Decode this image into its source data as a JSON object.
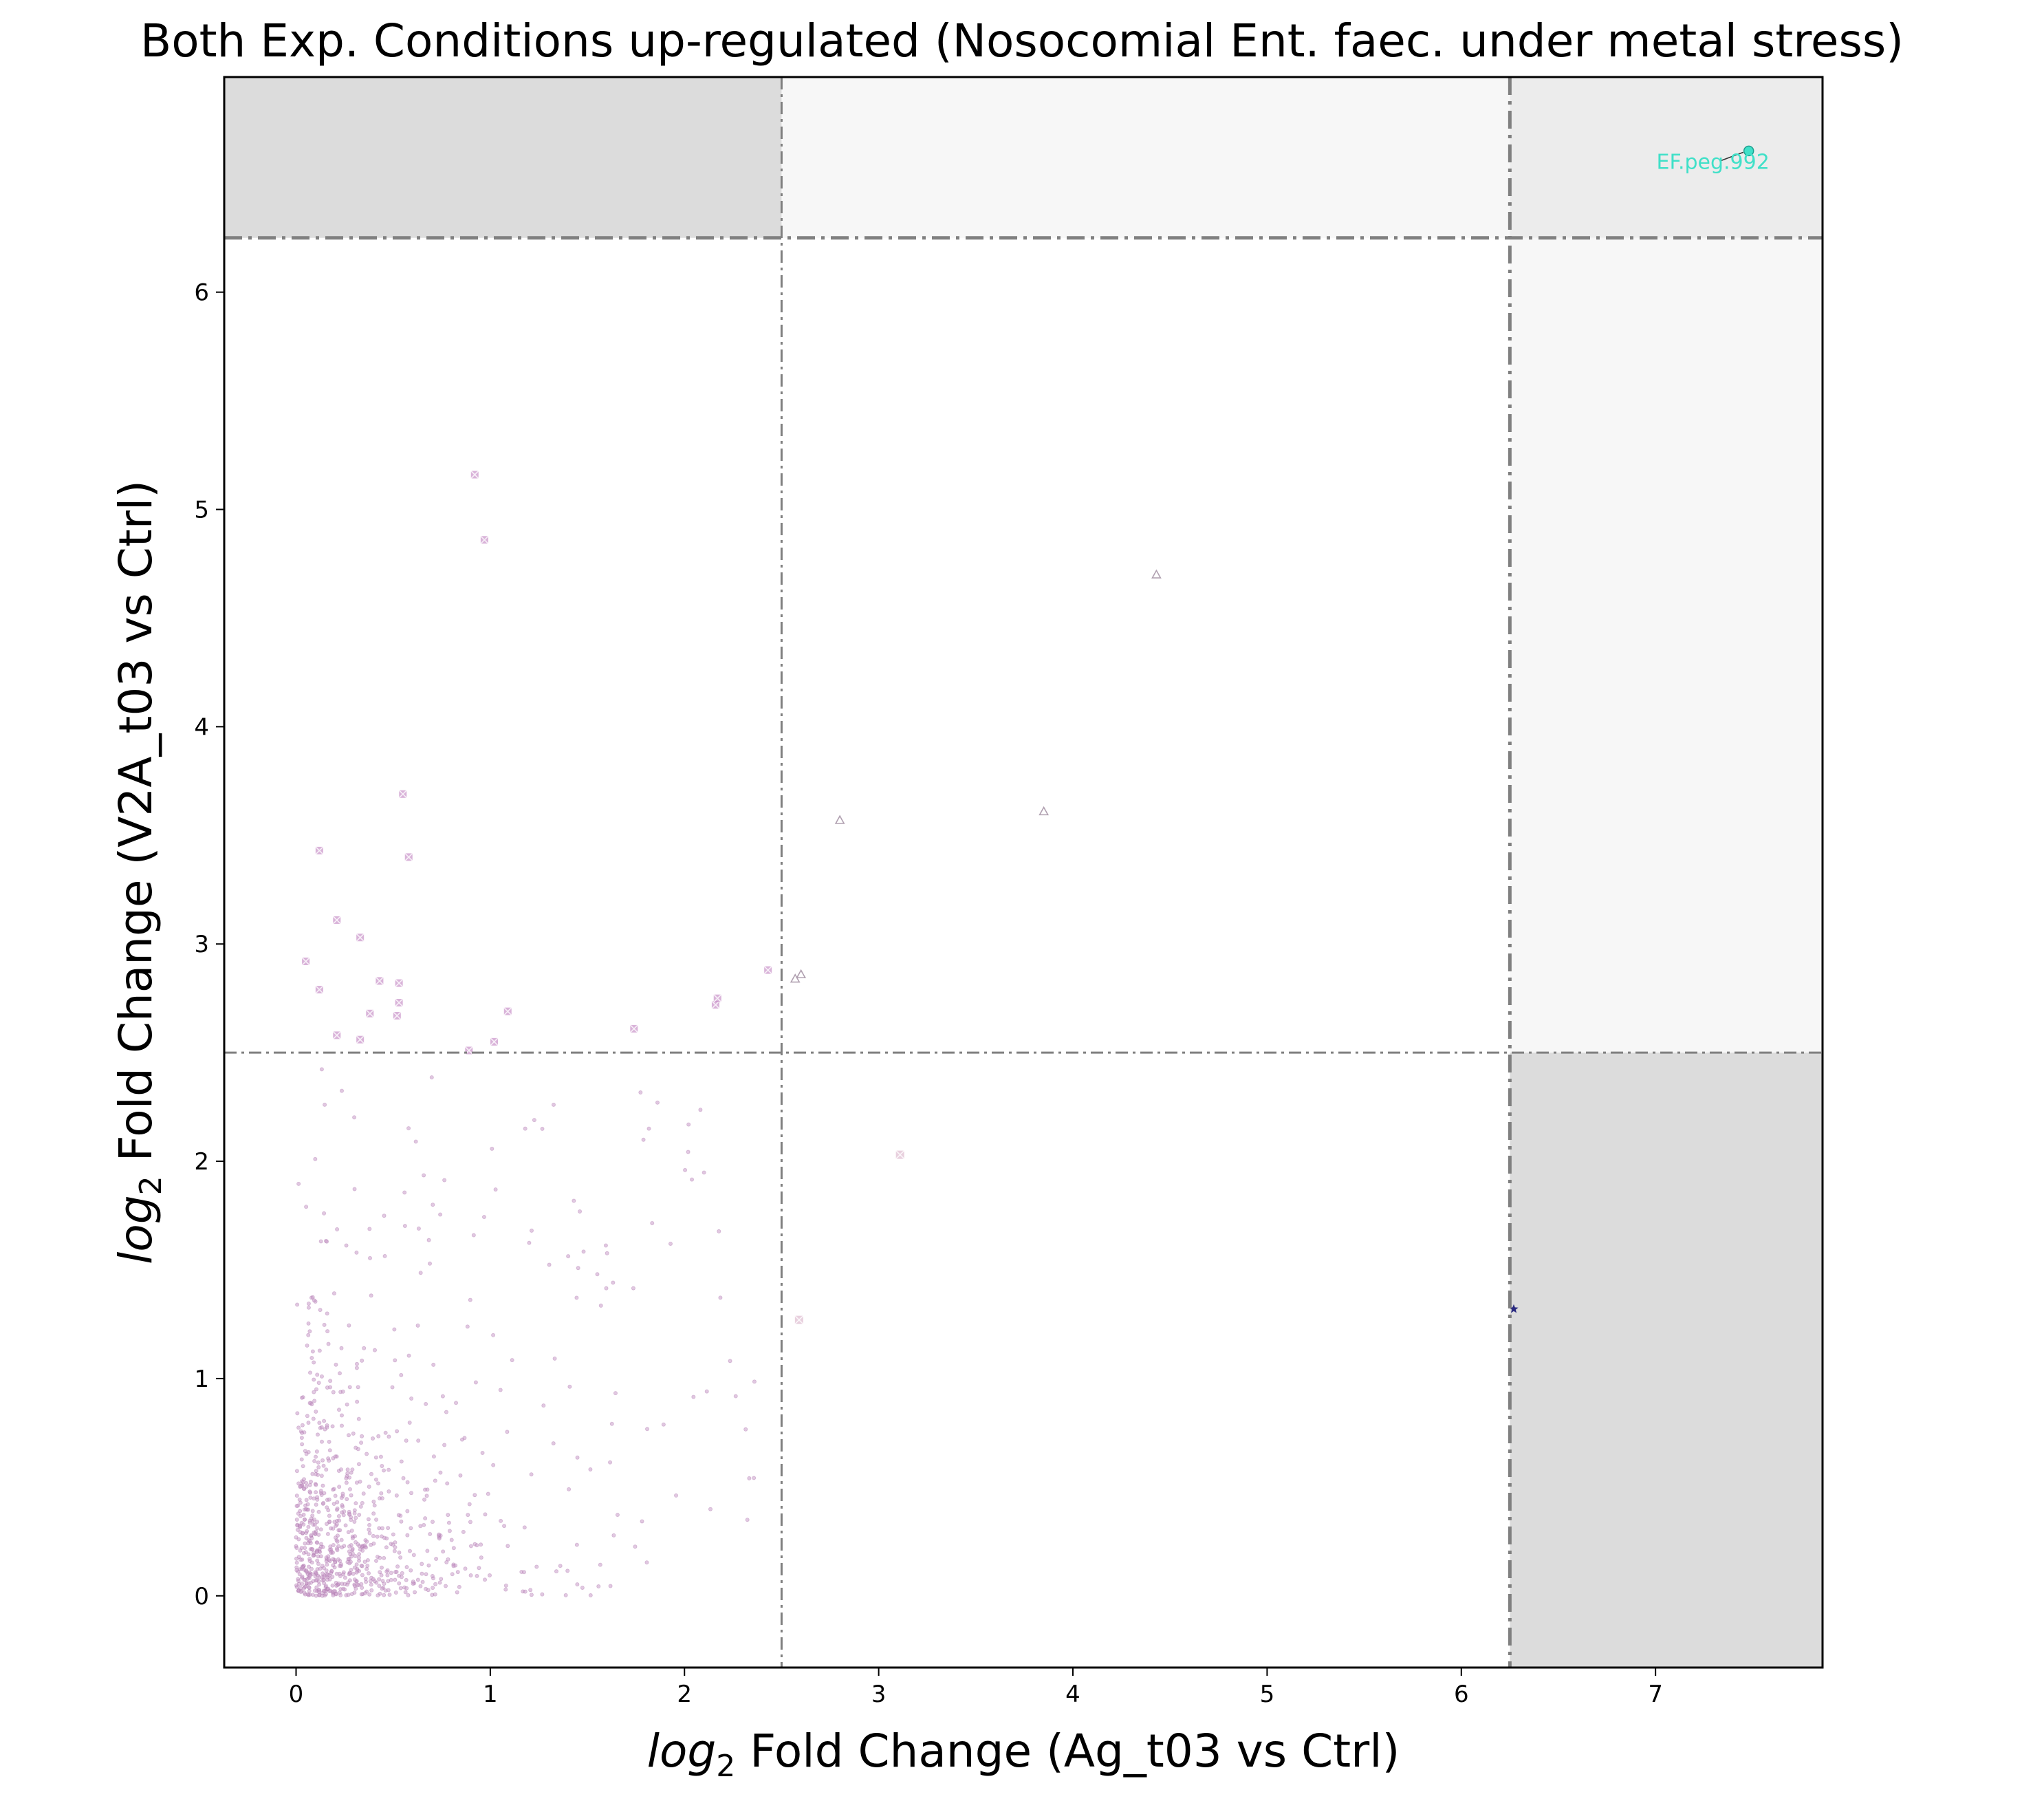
{
  "chart_data": {
    "type": "scatter",
    "title": "Both Exp. Conditions up-regulated (Nosocomial Ent. faec. under metal stress)",
    "xlabel_prefix": "log",
    "xlabel_sub": "2",
    "xlabel_rest": " Fold Change (Ag_t03 vs Ctrl)",
    "ylabel_prefix": "log",
    "ylabel_sub": "2",
    "ylabel_rest": " Fold Change (V2A_t03 vs Ctrl)",
    "xlim": [
      -0.37,
      7.86
    ],
    "ylim": [
      -0.33,
      6.99
    ],
    "x_ticks": [
      0,
      1,
      2,
      3,
      4,
      5,
      6,
      7
    ],
    "y_ticks": [
      0,
      1,
      2,
      3,
      4,
      5,
      6
    ],
    "thresholds": {
      "x_inner": 2.5,
      "x_outer": 6.25,
      "y_inner": 2.5,
      "y_outer": 6.25
    },
    "grid": false,
    "colors": {
      "background_points": "#c89ac8",
      "x_markers": "#c080c0",
      "triangle_markers": "#b0a0b0",
      "light_x_markers": "#d8b0c8",
      "star_marker": "#2a2a80",
      "highlight": "#40e0c8",
      "region_dark": "#dcdcdc",
      "region_light": "#f7f7f7",
      "region_mid": "#ececec",
      "threshold_line": "#808080"
    },
    "x_marker_points": [
      [
        0.92,
        5.16
      ],
      [
        0.97,
        4.86
      ],
      [
        0.55,
        3.69
      ],
      [
        0.58,
        3.4
      ],
      [
        0.12,
        3.43
      ],
      [
        0.21,
        3.11
      ],
      [
        0.33,
        3.03
      ],
      [
        0.05,
        2.92
      ],
      [
        0.43,
        2.83
      ],
      [
        0.53,
        2.82
      ],
      [
        0.12,
        2.79
      ],
      [
        0.53,
        2.73
      ],
      [
        0.38,
        2.68
      ],
      [
        1.09,
        2.69
      ],
      [
        0.52,
        2.67
      ],
      [
        0.21,
        2.58
      ],
      [
        0.33,
        2.56
      ],
      [
        1.02,
        2.55
      ],
      [
        0.89,
        2.51
      ],
      [
        1.74,
        2.61
      ],
      [
        2.16,
        2.72
      ],
      [
        2.17,
        2.75
      ],
      [
        2.43,
        2.88
      ]
    ],
    "triangle_points": [
      [
        4.43,
        4.7
      ],
      [
        2.8,
        3.57
      ],
      [
        3.85,
        3.61
      ],
      [
        2.57,
        2.84
      ],
      [
        2.6,
        2.86
      ]
    ],
    "light_x_points": [
      [
        3.11,
        2.03
      ],
      [
        2.59,
        1.27
      ]
    ],
    "star_points": [
      [
        6.27,
        1.32
      ]
    ],
    "highlight_points": [
      {
        "x": 7.48,
        "y": 6.65,
        "label": "EF.peg.992"
      }
    ],
    "background_cluster": {
      "n": 900,
      "x_max": 2.4,
      "y_max": 2.45,
      "note_concentration": "dense near origin"
    }
  }
}
